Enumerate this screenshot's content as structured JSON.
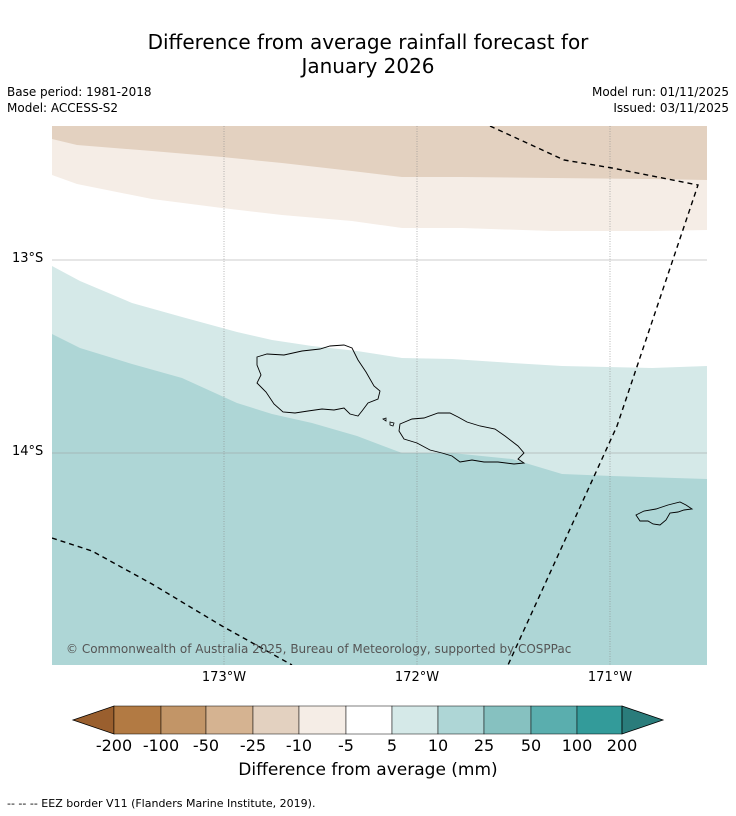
{
  "title": {
    "line1": "Difference from average rainfall forecast for",
    "line2": "January 2026"
  },
  "meta": {
    "base_period": "Base period: 1981-2018",
    "model": "Model: ACCESS-S2",
    "model_run": "Model run: 01/11/2025",
    "issued": "Issued: 03/11/2025"
  },
  "map": {
    "lat_labels": [
      "13°S",
      "14°S"
    ],
    "lon_labels": [
      "173°W",
      "172°W",
      "171°W"
    ],
    "copyright": "© Commonwealth of Australia 2025, Bureau of Meteorology, supported by COSPPac",
    "colors": {
      "brown_light": "#e3d1c0",
      "cream": "#f5ede6",
      "white": "#ffffff",
      "teal_pale": "#d5e9e8",
      "teal_light": "#aed6d6"
    }
  },
  "colorbar": {
    "labels": [
      "-200",
      "-100",
      "-50",
      "-25",
      "-10",
      "-5",
      "5",
      "10",
      "25",
      "50",
      "100",
      "200"
    ],
    "colors": [
      "#9a5f2e",
      "#b27a43",
      "#c29567",
      "#d5b391",
      "#e3d1c0",
      "#f5ede6",
      "#ffffff",
      "#d5e9e8",
      "#aed6d6",
      "#86c1c0",
      "#5aaeae",
      "#339b9a",
      "#2a7c7b"
    ],
    "title": "Difference from average (mm)"
  },
  "legend": {
    "eez": "--  --  -- EEZ border V11 (Flanders Marine Institute, 2019)."
  }
}
